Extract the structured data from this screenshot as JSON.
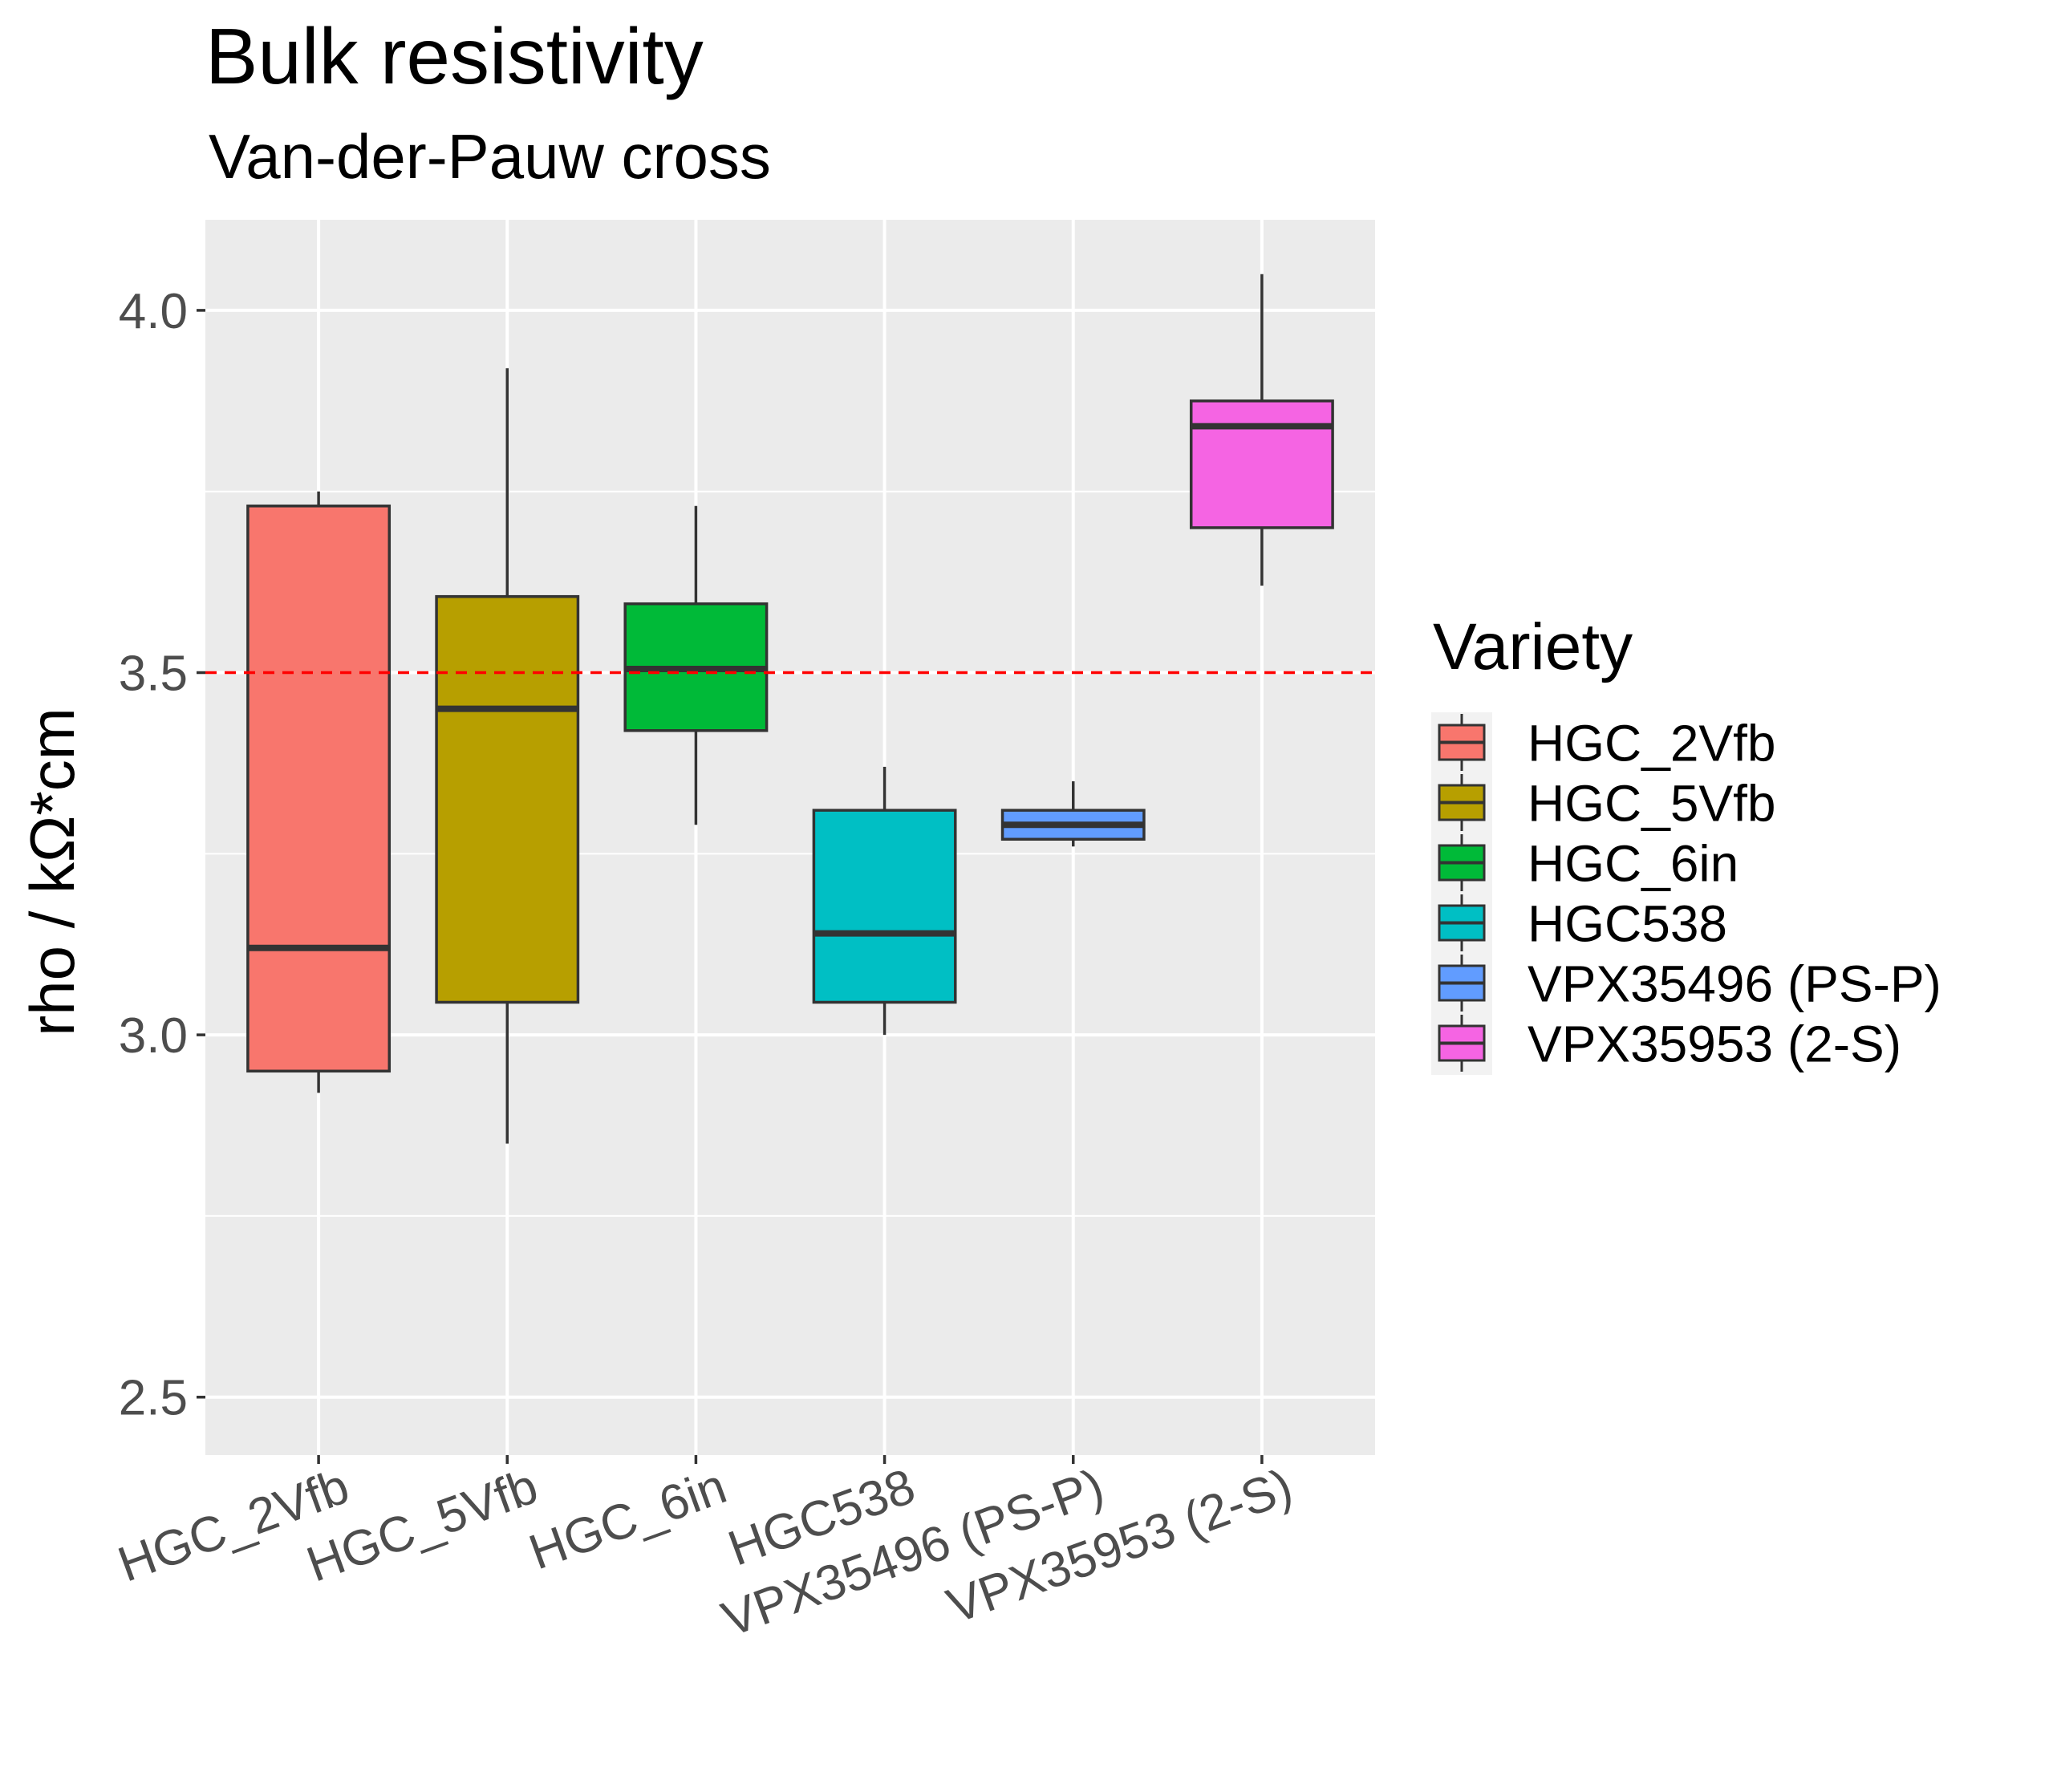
{
  "chart_data": {
    "type": "boxplot",
    "title": "Bulk resistivity",
    "subtitle": "Van-der-Pauw cross",
    "xlabel": "",
    "ylabel": "rho / kΩ*cm",
    "ylim": [
      2.42,
      4.125
    ],
    "yticks": [
      2.5,
      3.0,
      3.5,
      4.0
    ],
    "ytick_labels": [
      "2.5",
      "3.0",
      "3.5",
      "4.0"
    ],
    "reference_line": {
      "y": 3.5,
      "color": "#ff0000",
      "style": "dashed"
    },
    "grid": true,
    "panel_background": "#ebebeb",
    "grid_color": "#ffffff",
    "legend": {
      "title": "Variety",
      "position": "right"
    },
    "categories": [
      "HGC_2Vfb",
      "HGC_5Vfb",
      "HGC_6in",
      "HGC538",
      "VPX35496 (PS-P)",
      "VPX35953 (2-S)"
    ],
    "boxes": [
      {
        "name": "HGC_2Vfb",
        "min": 2.92,
        "q1": 2.95,
        "median": 3.12,
        "q3": 3.73,
        "max": 3.75,
        "color": "#F8766D"
      },
      {
        "name": "HGC_5Vfb",
        "min": 2.85,
        "q1": 3.045,
        "median": 3.45,
        "q3": 3.605,
        "max": 3.92,
        "color": "#B79F00"
      },
      {
        "name": "HGC_6in",
        "min": 3.29,
        "q1": 3.42,
        "median": 3.505,
        "q3": 3.595,
        "max": 3.73,
        "color": "#00BA38"
      },
      {
        "name": "HGC538",
        "min": 3.0,
        "q1": 3.045,
        "median": 3.14,
        "q3": 3.31,
        "max": 3.37,
        "color": "#00BFC4"
      },
      {
        "name": "VPX35496 (PS-P)",
        "min": 3.26,
        "q1": 3.27,
        "median": 3.29,
        "q3": 3.31,
        "max": 3.35,
        "color": "#619CFF"
      },
      {
        "name": "VPX35953 (2-S)",
        "min": 3.62,
        "q1": 3.7,
        "median": 3.84,
        "q3": 3.875,
        "max": 4.05,
        "color": "#F564E3"
      }
    ]
  }
}
